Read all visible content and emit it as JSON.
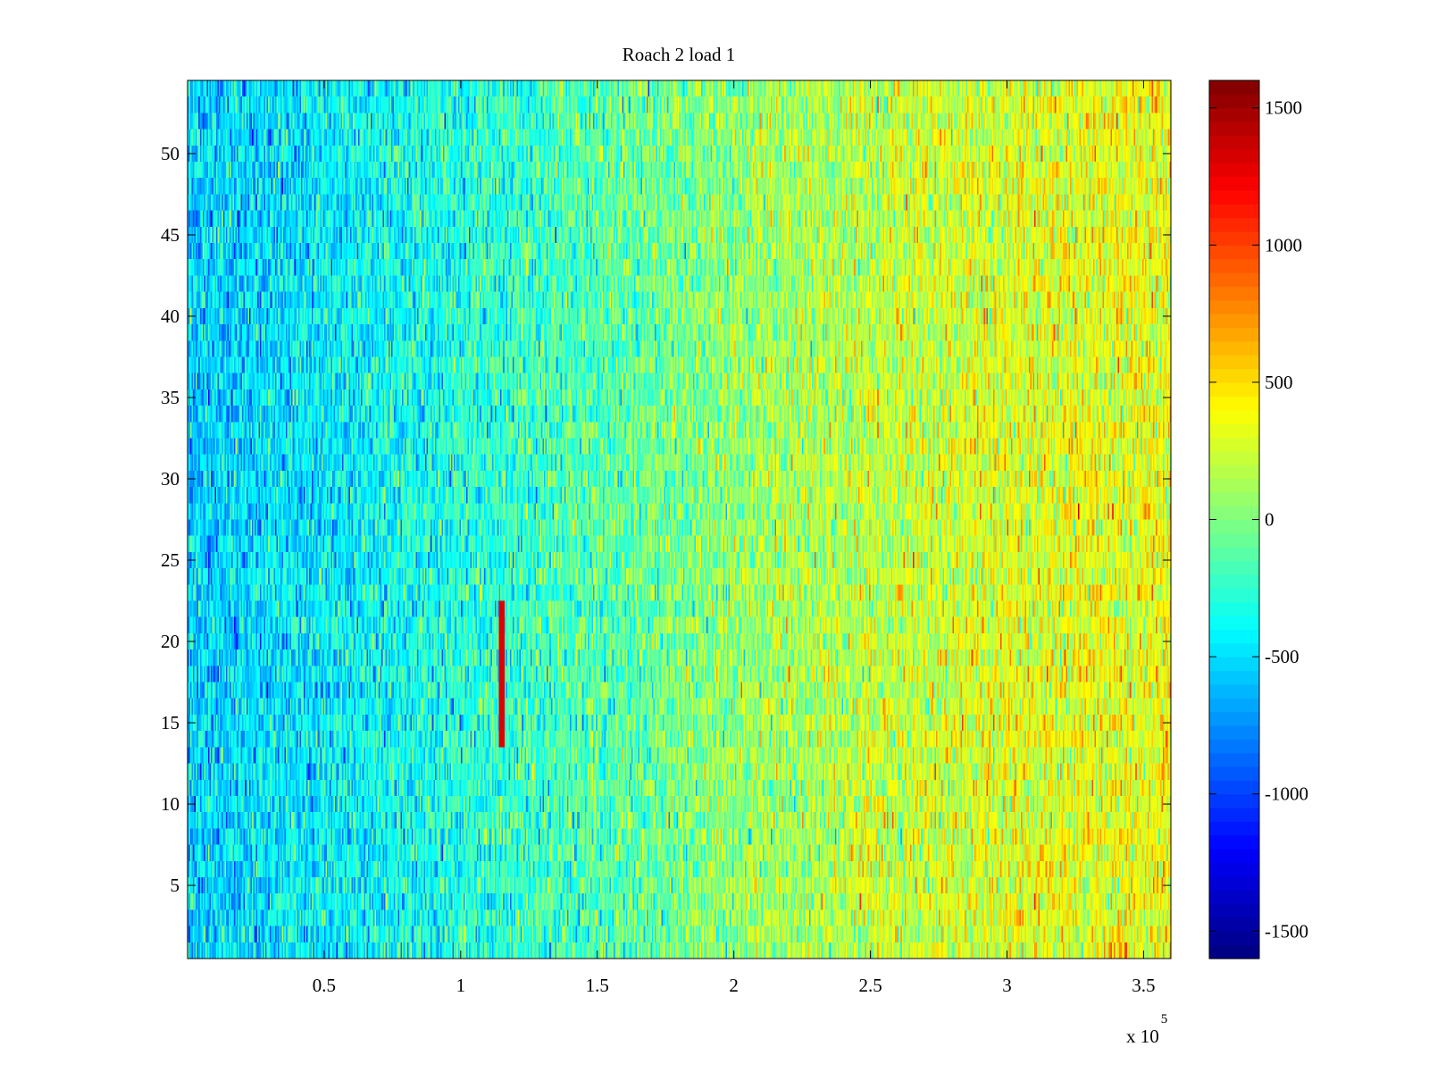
{
  "chart_data": {
    "type": "heatmap",
    "title": "Roach 2 load 1",
    "xlabel": "",
    "ylabel": "",
    "x_range": [
      0,
      360000
    ],
    "y_range": [
      0.5,
      54.5
    ],
    "x_ticks": [
      50000,
      100000,
      150000,
      200000,
      250000,
      300000,
      350000
    ],
    "x_tick_labels": [
      "0.5",
      "1",
      "1.5",
      "2",
      "2.5",
      "3",
      "3.5"
    ],
    "x_exponent_label": "x 10",
    "x_exponent_power": "5",
    "y_ticks": [
      5,
      10,
      15,
      20,
      25,
      30,
      35,
      40,
      45,
      50
    ],
    "y_tick_labels": [
      "5",
      "10",
      "15",
      "20",
      "25",
      "30",
      "35",
      "40",
      "45",
      "50"
    ],
    "rows": 54,
    "colormap": "jet",
    "color_range": [
      -1600,
      1600
    ],
    "colorbar_ticks": [
      -1500,
      -1000,
      -500,
      0,
      500,
      1000,
      1500
    ],
    "colorbar_tick_labels": [
      "-1500",
      "-1000",
      "-500",
      "0",
      "500",
      "1000",
      "1500"
    ],
    "trend": {
      "description": "Values increase from left to right across all rows",
      "mean_at_x": [
        [
          0,
          -550
        ],
        [
          50000,
          -450
        ],
        [
          100000,
          -300
        ],
        [
          150000,
          -150
        ],
        [
          200000,
          50
        ],
        [
          250000,
          200
        ],
        [
          300000,
          300
        ],
        [
          360000,
          350
        ]
      ],
      "noise_std": 230
    },
    "notable_feature": {
      "x": 115000,
      "y_range": [
        13.5,
        22
      ],
      "value": 1300
    }
  }
}
